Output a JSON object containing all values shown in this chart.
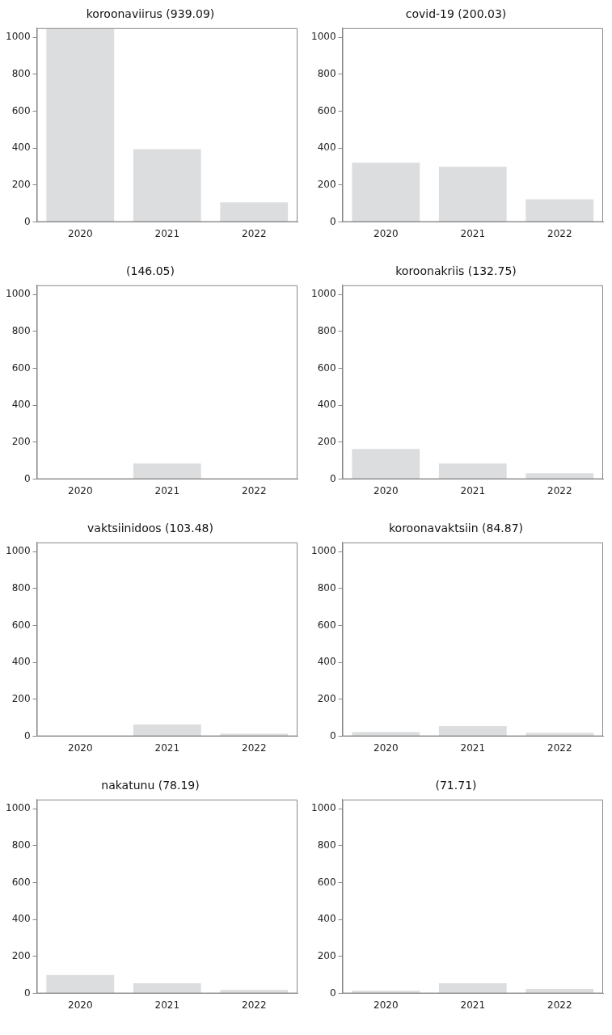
{
  "chart_data": [
    {
      "type": "bar",
      "title": "koroonaviirus (939.09)",
      "categories": [
        "2020",
        "2021",
        "2022"
      ],
      "values": [
        1050,
        395,
        107
      ],
      "color": "#dcdddf",
      "ylim": [
        0,
        1050
      ],
      "yticks": [
        0,
        200,
        400,
        600,
        800,
        1000
      ]
    },
    {
      "type": "bar",
      "title": "covid-19 (200.03)",
      "categories": [
        "2020",
        "2021",
        "2022"
      ],
      "values": [
        321,
        299,
        123
      ],
      "color": "#dcdddf",
      "ylim": [
        0,
        1050
      ],
      "yticks": [
        0,
        200,
        400,
        600,
        800,
        1000
      ]
    },
    {
      "type": "bar",
      "title": "(146.05)",
      "categories": [
        "2020",
        "2021",
        "2022"
      ],
      "values": [
        0,
        85,
        0
      ],
      "color": "#dcdddf",
      "ylim": [
        0,
        1050
      ],
      "yticks": [
        0,
        200,
        400,
        600,
        800,
        1000
      ]
    },
    {
      "type": "bar",
      "title": "koroonakriis (132.75)",
      "categories": [
        "2020",
        "2021",
        "2022"
      ],
      "values": [
        163,
        85,
        32
      ],
      "color": "#dcdddf",
      "ylim": [
        0,
        1050
      ],
      "yticks": [
        0,
        200,
        400,
        600,
        800,
        1000
      ]
    },
    {
      "type": "bar",
      "title": "vaktsiinidoos (103.48)",
      "categories": [
        "2020",
        "2021",
        "2022"
      ],
      "values": [
        0,
        64,
        15
      ],
      "color": "#dcdddf",
      "ylim": [
        0,
        1050
      ],
      "yticks": [
        0,
        200,
        400,
        600,
        800,
        1000
      ]
    },
    {
      "type": "bar",
      "title": "koroonavaktsiin (84.87)",
      "categories": [
        "2020",
        "2021",
        "2022"
      ],
      "values": [
        23,
        55,
        19
      ],
      "color": "#dcdddf",
      "ylim": [
        0,
        1050
      ],
      "yticks": [
        0,
        200,
        400,
        600,
        800,
        1000
      ]
    },
    {
      "type": "bar",
      "title": "nakatunu (78.19)",
      "categories": [
        "2020",
        "2021",
        "2022"
      ],
      "values": [
        100,
        55,
        19
      ],
      "color": "#dcdddf",
      "ylim": [
        0,
        1050
      ],
      "yticks": [
        0,
        200,
        400,
        600,
        800,
        1000
      ]
    },
    {
      "type": "bar",
      "title": "(71.71)",
      "categories": [
        "2020",
        "2021",
        "2022"
      ],
      "values": [
        15,
        55,
        25
      ],
      "color": "#dcdddf",
      "ylim": [
        0,
        1050
      ],
      "yticks": [
        0,
        200,
        400,
        600,
        800,
        1000
      ]
    }
  ]
}
